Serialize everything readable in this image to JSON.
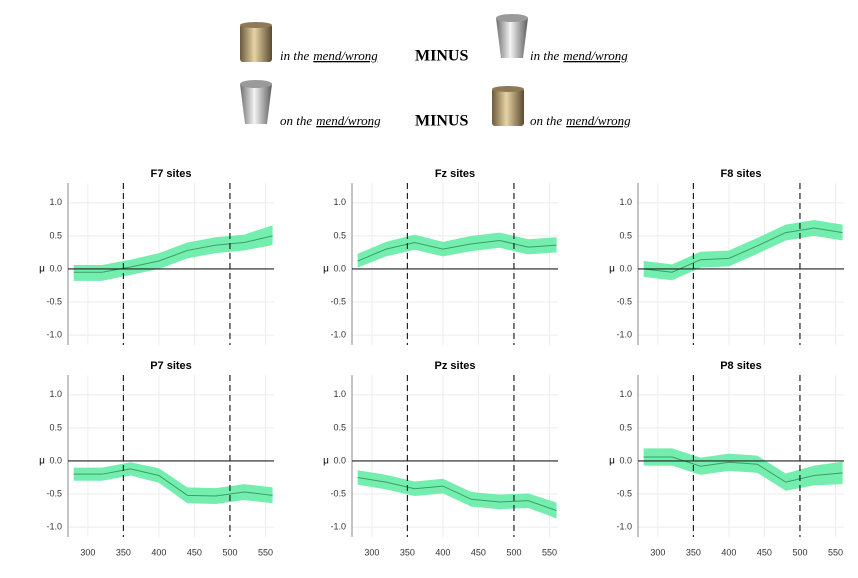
{
  "header": {
    "rows": [
      {
        "left_prefix": "in the",
        "left_word": "mend/wrong",
        "operator": "MINUS",
        "right_prefix": "in the",
        "right_word": "mend/wrong"
      },
      {
        "left_prefix": "on the",
        "left_word": "mend/wrong",
        "operator": "MINUS",
        "right_prefix": "on the",
        "right_word": "mend/wrong"
      }
    ]
  },
  "chart_data": [
    {
      "type": "line",
      "title": "F7 sites",
      "ylabel": "μ",
      "x": [
        280,
        320,
        360,
        400,
        440,
        480,
        520,
        560
      ],
      "values": [
        -0.05,
        -0.05,
        0.03,
        0.12,
        0.28,
        0.36,
        0.4,
        0.5
      ],
      "lower": [
        -0.18,
        -0.18,
        -0.09,
        0.0,
        0.16,
        0.24,
        0.28,
        0.36
      ],
      "upper": [
        0.06,
        0.06,
        0.14,
        0.24,
        0.4,
        0.48,
        0.52,
        0.66
      ],
      "color": "#3a9e68",
      "band_color": "#74eeae",
      "xlim": [
        272,
        562
      ],
      "ylim": [
        -1.15,
        1.3
      ],
      "xticks": [
        300,
        350,
        400,
        450,
        500,
        550
      ],
      "yticks": [
        {
          "value": -1,
          "label": "-1.0"
        },
        {
          "value": -0.5,
          "label": "-0.5"
        },
        {
          "value": 0,
          "label": "0.0"
        },
        {
          "value": 0.5,
          "label": "0.5"
        },
        {
          "value": 1,
          "label": "1.0"
        }
      ],
      "vlines": [
        350,
        500
      ],
      "hline": 0,
      "grid": true,
      "xtick_labels": false
    },
    {
      "type": "line",
      "title": "Fz sites",
      "ylabel": "μ",
      "x": [
        280,
        320,
        360,
        400,
        440,
        480,
        520,
        560
      ],
      "values": [
        0.12,
        0.3,
        0.4,
        0.3,
        0.38,
        0.43,
        0.33,
        0.36
      ],
      "lower": [
        0.02,
        0.19,
        0.29,
        0.19,
        0.27,
        0.32,
        0.22,
        0.25
      ],
      "upper": [
        0.23,
        0.41,
        0.52,
        0.41,
        0.5,
        0.55,
        0.45,
        0.48
      ],
      "color": "#3a9e68",
      "band_color": "#74eeae",
      "xlim": [
        272,
        562
      ],
      "ylim": [
        -1.15,
        1.3
      ],
      "xticks": [
        300,
        350,
        400,
        450,
        500,
        550
      ],
      "yticks": [
        {
          "value": -1,
          "label": "-1.0"
        },
        {
          "value": -0.5,
          "label": "-0.5"
        },
        {
          "value": 0,
          "label": "0.0"
        },
        {
          "value": 0.5,
          "label": "0.5"
        },
        {
          "value": 1,
          "label": "1.0"
        }
      ],
      "vlines": [
        350,
        500
      ],
      "hline": 0,
      "grid": true,
      "xtick_labels": false
    },
    {
      "type": "line",
      "title": "F8 sites",
      "ylabel": "μ",
      "x": [
        280,
        320,
        360,
        400,
        440,
        480,
        520,
        560
      ],
      "values": [
        0.0,
        -0.05,
        0.14,
        0.16,
        0.35,
        0.55,
        0.62,
        0.55
      ],
      "lower": [
        -0.12,
        -0.17,
        0.02,
        0.04,
        0.23,
        0.43,
        0.5,
        0.43
      ],
      "upper": [
        0.12,
        0.07,
        0.26,
        0.28,
        0.47,
        0.67,
        0.74,
        0.67
      ],
      "color": "#3a9e68",
      "band_color": "#74eeae",
      "xlim": [
        272,
        562
      ],
      "ylim": [
        -1.15,
        1.3
      ],
      "xticks": [
        300,
        350,
        400,
        450,
        500,
        550
      ],
      "yticks": [
        {
          "value": -1,
          "label": "-1.0"
        },
        {
          "value": -0.5,
          "label": "-0.5"
        },
        {
          "value": 0,
          "label": "0.0"
        },
        {
          "value": 0.5,
          "label": "0.5"
        },
        {
          "value": 1,
          "label": "1.0"
        }
      ],
      "vlines": [
        350,
        500
      ],
      "hline": 0,
      "grid": true,
      "xtick_labels": false
    },
    {
      "type": "line",
      "title": "P7 sites",
      "ylabel": "μ",
      "x": [
        280,
        320,
        360,
        400,
        440,
        480,
        520,
        560
      ],
      "values": [
        -0.2,
        -0.2,
        -0.12,
        -0.22,
        -0.52,
        -0.53,
        -0.47,
        -0.52
      ],
      "lower": [
        -0.3,
        -0.3,
        -0.22,
        -0.33,
        -0.64,
        -0.65,
        -0.59,
        -0.64
      ],
      "upper": [
        -0.1,
        -0.1,
        -0.02,
        -0.11,
        -0.4,
        -0.41,
        -0.35,
        -0.4
      ],
      "color": "#3a9e68",
      "band_color": "#74eeae",
      "xlim": [
        272,
        562
      ],
      "ylim": [
        -1.15,
        1.3
      ],
      "xticks": [
        300,
        350,
        400,
        450,
        500,
        550
      ],
      "yticks": [
        {
          "value": -1,
          "label": "-1.0"
        },
        {
          "value": -0.5,
          "label": "-0.5"
        },
        {
          "value": 0,
          "label": "0.0"
        },
        {
          "value": 0.5,
          "label": "0.5"
        },
        {
          "value": 1,
          "label": "1.0"
        }
      ],
      "vlines": [
        350,
        500
      ],
      "hline": 0,
      "grid": true,
      "xtick_labels": true
    },
    {
      "type": "line",
      "title": "Pz sites",
      "ylabel": "μ",
      "x": [
        280,
        320,
        360,
        400,
        440,
        480,
        520,
        560
      ],
      "values": [
        -0.25,
        -0.32,
        -0.42,
        -0.38,
        -0.58,
        -0.62,
        -0.6,
        -0.75
      ],
      "lower": [
        -0.36,
        -0.43,
        -0.53,
        -0.49,
        -0.69,
        -0.73,
        -0.71,
        -0.87
      ],
      "upper": [
        -0.14,
        -0.21,
        -0.31,
        -0.27,
        -0.47,
        -0.51,
        -0.49,
        -0.63
      ],
      "color": "#3a9e68",
      "band_color": "#74eeae",
      "xlim": [
        272,
        562
      ],
      "ylim": [
        -1.15,
        1.3
      ],
      "xticks": [
        300,
        350,
        400,
        450,
        500,
        550
      ],
      "yticks": [
        {
          "value": -1,
          "label": "-1.0"
        },
        {
          "value": -0.5,
          "label": "-0.5"
        },
        {
          "value": 0,
          "label": "0.0"
        },
        {
          "value": 0.5,
          "label": "0.5"
        },
        {
          "value": 1,
          "label": "1.0"
        }
      ],
      "vlines": [
        350,
        500
      ],
      "hline": 0,
      "grid": true,
      "xtick_labels": true
    },
    {
      "type": "line",
      "title": "P8 sites",
      "ylabel": "μ",
      "x": [
        280,
        320,
        360,
        400,
        440,
        480,
        520,
        560
      ],
      "values": [
        0.06,
        0.06,
        -0.08,
        -0.02,
        -0.05,
        -0.32,
        -0.22,
        -0.18
      ],
      "lower": [
        -0.07,
        -0.07,
        -0.21,
        -0.15,
        -0.18,
        -0.45,
        -0.37,
        -0.35
      ],
      "upper": [
        0.19,
        0.19,
        0.05,
        0.11,
        0.08,
        -0.19,
        -0.07,
        -0.01
      ],
      "color": "#3a9e68",
      "band_color": "#74eeae",
      "xlim": [
        272,
        562
      ],
      "ylim": [
        -1.15,
        1.3
      ],
      "xticks": [
        300,
        350,
        400,
        450,
        500,
        550
      ],
      "yticks": [
        {
          "value": -1,
          "label": "-1.0"
        },
        {
          "value": -0.5,
          "label": "-0.5"
        },
        {
          "value": 0,
          "label": "0.0"
        },
        {
          "value": 0.5,
          "label": "0.5"
        },
        {
          "value": 1,
          "label": "1.0"
        }
      ],
      "vlines": [
        350,
        500
      ],
      "hline": 0,
      "grid": true,
      "xtick_labels": true
    }
  ]
}
